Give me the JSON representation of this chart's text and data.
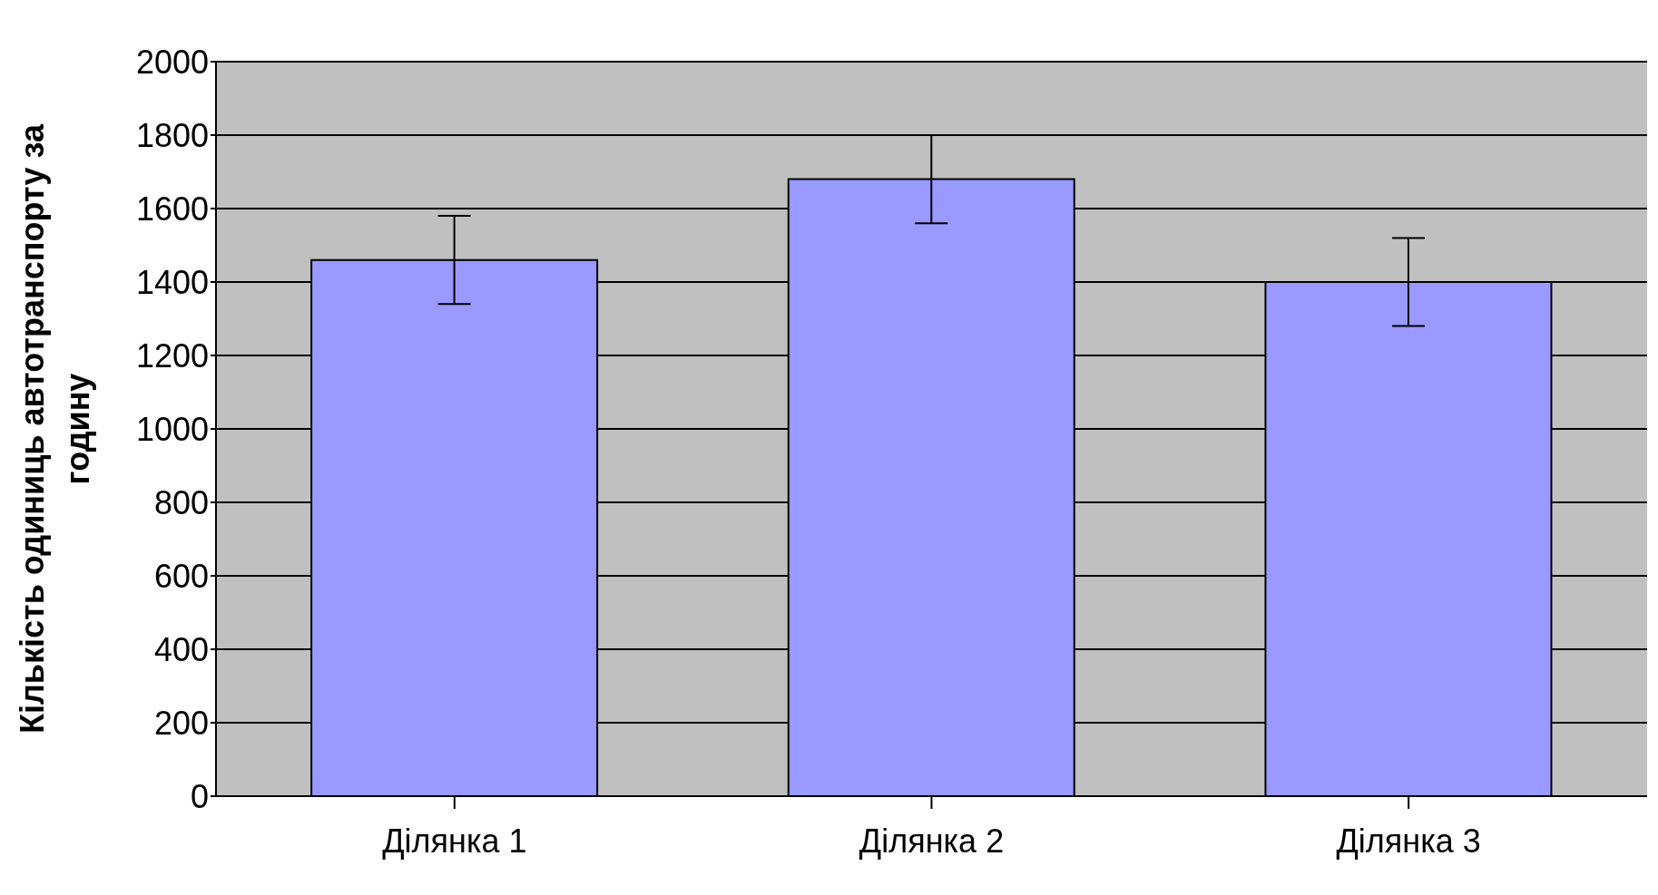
{
  "chart_data": {
    "type": "bar",
    "ylabel": "Кількість одиниць автотранспорту за годину",
    "categories": [
      "Ділянка 1",
      "Ділянка 2",
      "Ділянка 3"
    ],
    "values": [
      1460,
      1680,
      1400
    ],
    "errors": [
      120,
      120,
      120
    ],
    "color": "#9999ff",
    "ylim": [
      0,
      2000
    ],
    "yticks": [
      0,
      200,
      400,
      600,
      800,
      1000,
      1200,
      1400,
      1600,
      1800,
      2000
    ],
    "grid": "y"
  }
}
